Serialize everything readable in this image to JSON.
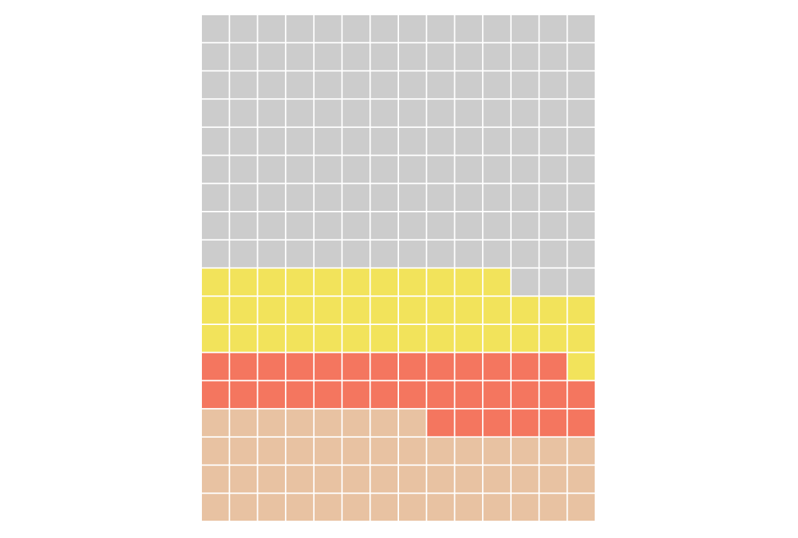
{
  "chart_data": {
    "type": "waffle",
    "values": [
      50,
      33,
      40,
      129
    ],
    "colors": [
      "#e8c2a2",
      "#f4765f",
      "#f2e35b",
      "#cccccc"
    ],
    "columns": 14
  }
}
